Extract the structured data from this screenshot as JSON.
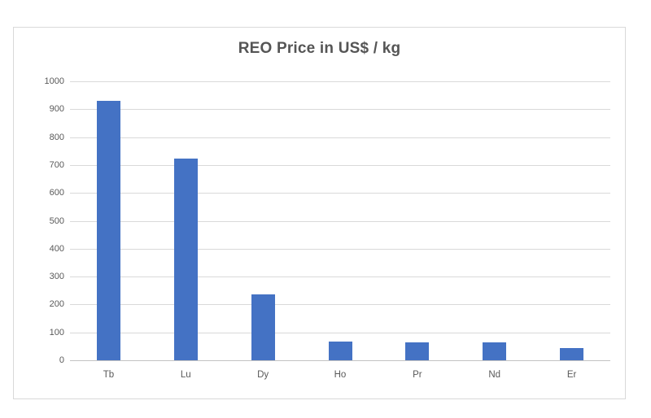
{
  "chart_data": {
    "type": "bar",
    "title": "REO Price in US$ / kg",
    "categories": [
      "Tb",
      "Lu",
      "Dy",
      "Ho",
      "Pr",
      "Nd",
      "Er"
    ],
    "values": [
      930,
      723,
      235,
      66,
      63,
      63,
      44
    ],
    "xlabel": "",
    "ylabel": "",
    "ylim": [
      0,
      1000
    ],
    "yticks": [
      0,
      100,
      200,
      300,
      400,
      500,
      600,
      700,
      800,
      900,
      1000
    ],
    "grid": true,
    "legend": false,
    "colors": {
      "bar": "#4472C4",
      "gridline": "#D9D9D9",
      "axis_line": "#C3C3C3",
      "tick_label": "#595959",
      "title": "#555555",
      "chart_border": "#D9D9D9",
      "background": "#FFFFFF"
    }
  }
}
